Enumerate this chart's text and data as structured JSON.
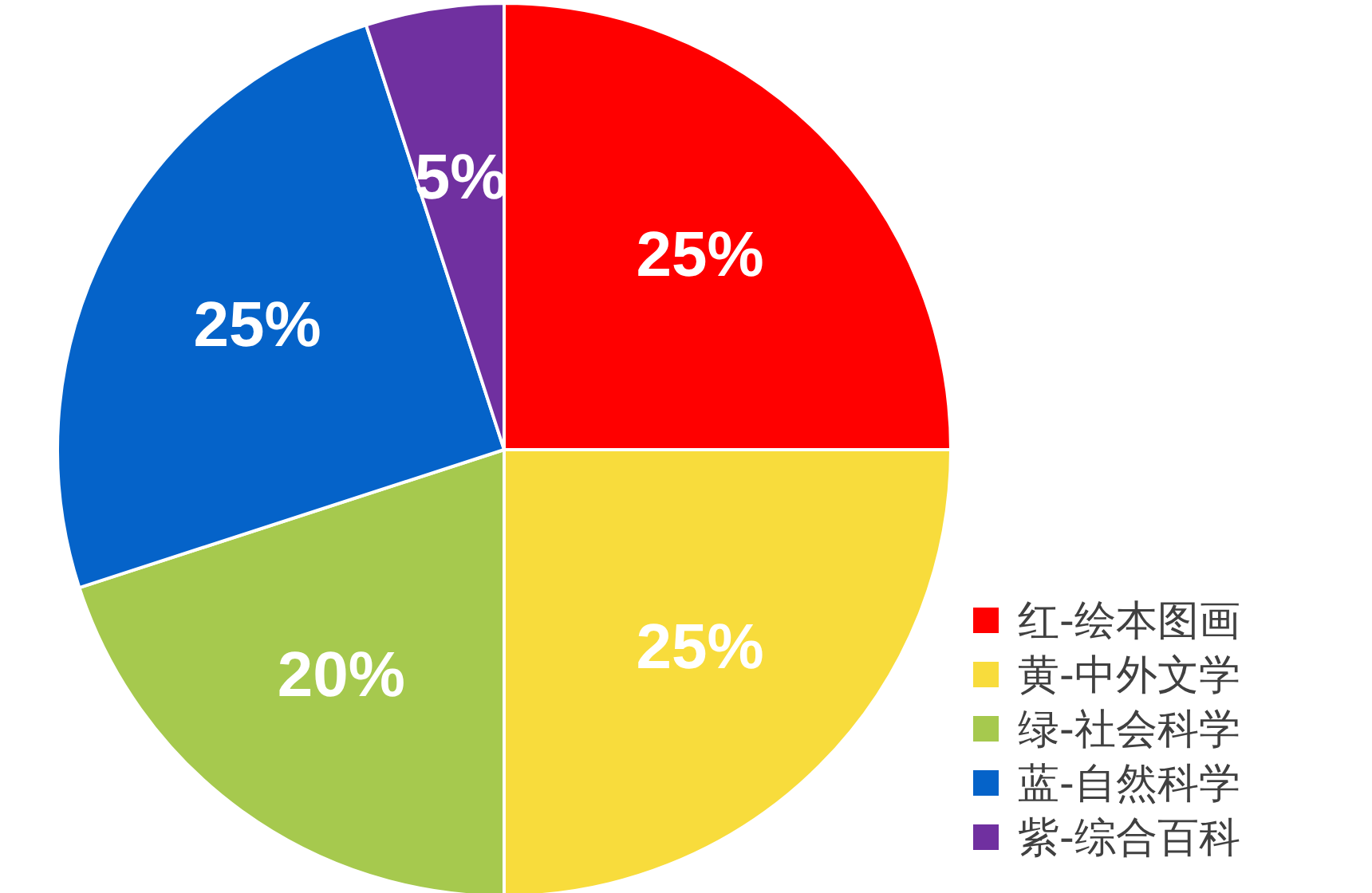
{
  "chart_data": {
    "type": "pie",
    "categories": [
      "红-绘本图画",
      "黄-中外文学",
      "绿-社会科学",
      "蓝-自然科学",
      "紫-综合百科"
    ],
    "values": [
      25,
      25,
      20,
      25,
      5
    ],
    "colors": [
      "#ff0000",
      "#f8dc3c",
      "#a6c94e",
      "#0563c9",
      "#7030a0"
    ],
    "value_labels": [
      "25%",
      "25%",
      "20%",
      "25%",
      "5%"
    ],
    "legend": "bottom right"
  }
}
